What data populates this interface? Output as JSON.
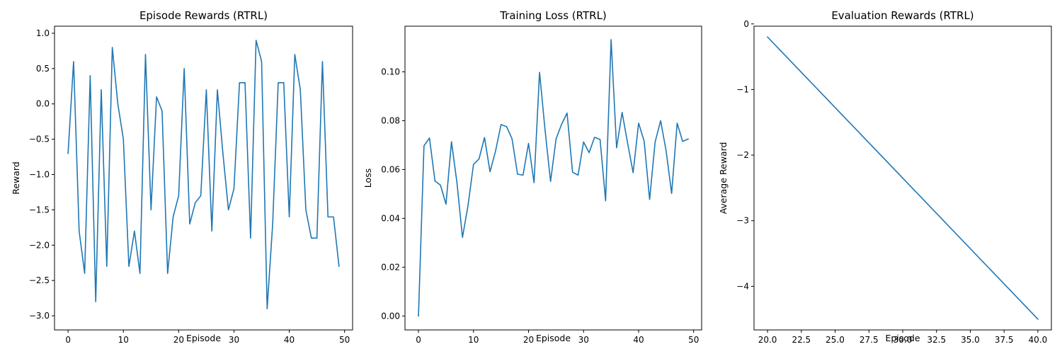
{
  "chart_data": [
    {
      "type": "line",
      "title": "Episode Rewards (RTRL)",
      "xlabel": "Episode",
      "ylabel": "Reward",
      "color": "#1f77b4",
      "xlim": [
        -2.45,
        51.45
      ],
      "ylim": [
        -3.2,
        1.1
      ],
      "xticks": [
        0,
        10,
        20,
        30,
        40,
        50
      ],
      "xtick_labels": [
        "0",
        "10",
        "20",
        "30",
        "40",
        "50"
      ],
      "yticks": [
        1.0,
        0.5,
        0.0,
        -0.5,
        -1.0,
        -1.5,
        -2.0,
        -2.5,
        -3.0
      ],
      "ytick_labels": [
        "1.0",
        "0.5",
        "0.0",
        "−0.5",
        "−1.0",
        "−1.5",
        "−2.0",
        "−2.5",
        "−3.0"
      ],
      "series": [
        {
          "x": [
            0,
            1,
            2,
            3,
            4,
            5,
            6,
            7,
            8,
            9,
            10,
            11,
            12,
            13,
            14,
            15,
            16,
            17,
            18,
            19,
            20,
            21,
            22,
            23,
            24,
            25,
            26,
            27,
            28,
            29,
            30,
            31,
            32,
            33,
            34,
            35,
            36,
            37,
            38,
            39,
            40,
            41,
            42,
            43,
            44,
            45,
            46,
            47,
            48,
            49
          ],
          "values": [
            -0.7,
            0.6,
            -1.8,
            -2.4,
            0.4,
            -2.8,
            0.2,
            -2.3,
            0.8,
            0.0,
            -0.5,
            -2.3,
            -1.8,
            -2.4,
            0.7,
            -1.5,
            0.1,
            -0.1,
            -2.4,
            -1.6,
            -1.3,
            0.5,
            -1.7,
            -1.4,
            -1.3,
            0.2,
            -1.8,
            0.2,
            -0.7,
            -1.5,
            -1.2,
            0.3,
            0.3,
            -1.9,
            0.9,
            0.6,
            -2.9,
            -1.7,
            0.3,
            0.3,
            -1.6,
            0.7,
            0.2,
            -1.5,
            -1.9,
            -1.9,
            0.6,
            -1.6,
            -1.6,
            -2.3
          ]
        }
      ]
    },
    {
      "type": "line",
      "title": "Training Loss (RTRL)",
      "xlabel": "Episode",
      "ylabel": "Loss",
      "color": "#1f77b4",
      "xlim": [
        -2.45,
        51.45
      ],
      "ylim": [
        -0.0057,
        0.1187
      ],
      "xticks": [
        0,
        10,
        20,
        30,
        40,
        50
      ],
      "xtick_labels": [
        "0",
        "10",
        "20",
        "30",
        "40",
        "50"
      ],
      "yticks": [
        0.1,
        0.08,
        0.06,
        0.04,
        0.02,
        0.0
      ],
      "ytick_labels": [
        "0.10",
        "0.08",
        "0.06",
        "0.04",
        "0.02",
        "0.00"
      ],
      "series": [
        {
          "x": [
            0,
            1,
            2,
            3,
            4,
            5,
            6,
            7,
            8,
            9,
            10,
            11,
            12,
            13,
            14,
            15,
            16,
            17,
            18,
            19,
            20,
            21,
            22,
            23,
            24,
            25,
            26,
            27,
            28,
            29,
            30,
            31,
            32,
            33,
            34,
            35,
            36,
            37,
            38,
            39,
            40,
            41,
            42,
            43,
            44,
            45,
            46,
            47,
            48,
            49
          ],
          "values": [
            0.0,
            0.0697,
            0.0729,
            0.0553,
            0.0536,
            0.0458,
            0.0714,
            0.0545,
            0.0322,
            0.0452,
            0.0621,
            0.0643,
            0.0731,
            0.0591,
            0.0675,
            0.0784,
            0.0776,
            0.0726,
            0.0581,
            0.0577,
            0.0707,
            0.0546,
            0.0998,
            0.0762,
            0.0551,
            0.0725,
            0.0785,
            0.0831,
            0.0589,
            0.0577,
            0.0713,
            0.0669,
            0.0732,
            0.0723,
            0.0472,
            0.1132,
            0.0689,
            0.0834,
            0.0708,
            0.0587,
            0.079,
            0.0717,
            0.0477,
            0.0713,
            0.08,
            0.0676,
            0.0502,
            0.079,
            0.0715,
            0.0725
          ]
        }
      ]
    },
    {
      "type": "line",
      "title": "Evaluation Rewards (RTRL)",
      "xlabel": "Episode",
      "ylabel": "Average Reward",
      "color": "#1f77b4",
      "xlim": [
        19.0,
        41.0
      ],
      "ylim": [
        -4.665,
        -0.035
      ],
      "xticks": [
        20.0,
        22.5,
        25.0,
        27.5,
        30.0,
        32.5,
        35.0,
        37.5,
        40.0
      ],
      "xtick_labels": [
        "20.0",
        "22.5",
        "25.0",
        "27.5",
        "30.0",
        "32.5",
        "35.0",
        "37.5",
        "40.0"
      ],
      "yticks": [
        0,
        -1,
        -2,
        -3,
        -4
      ],
      "ytick_labels": [
        "0",
        "−1",
        "−2",
        "−3",
        "−4"
      ],
      "series": [
        {
          "x": [
            20,
            40
          ],
          "values": [
            -0.2,
            -4.5
          ]
        }
      ]
    }
  ]
}
